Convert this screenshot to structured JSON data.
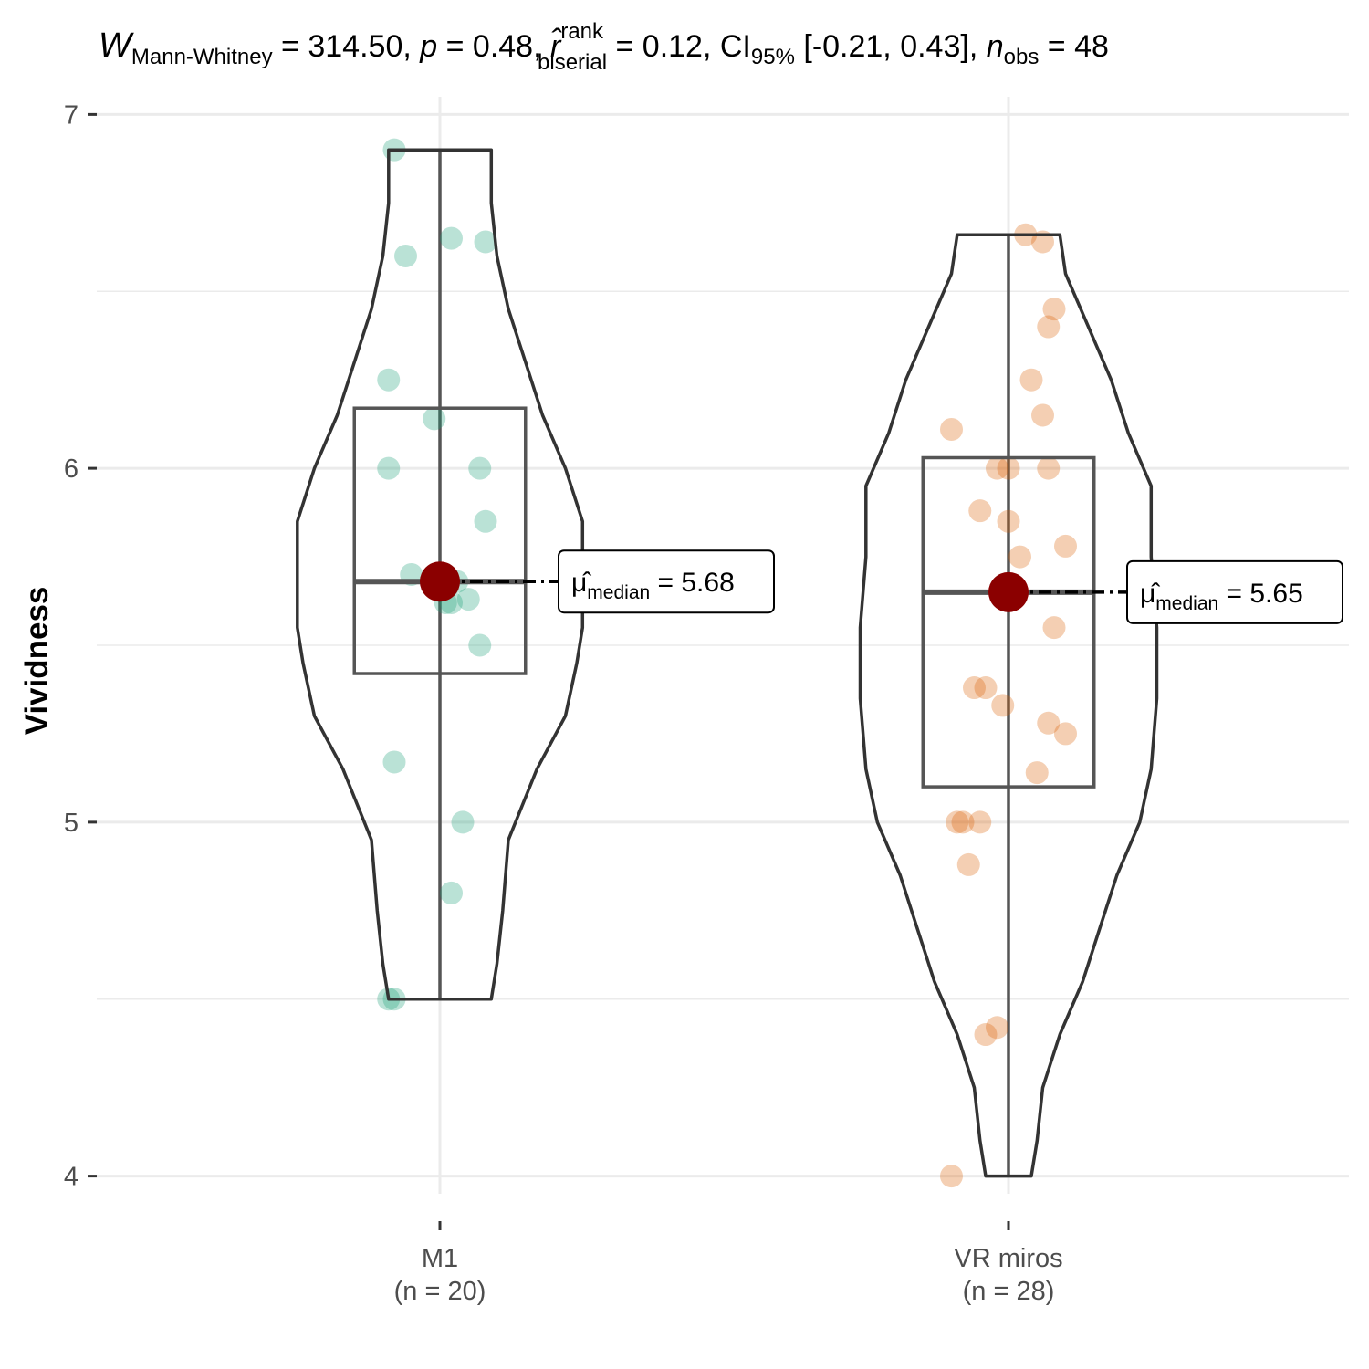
{
  "chart_data": {
    "type": "violin",
    "subtitle_parts": {
      "stat_symbol": "W",
      "stat_sub": "Mann-Whitney",
      "stat_value": " = 314.50, ",
      "p_symbol": "p",
      "p_value": " = 0.48, ",
      "r_symbol": "r̂",
      "r_sup": "rank",
      "r_sub": "biserial",
      "r_value": " = 0.12, CI",
      "ci_sub": "95%",
      "ci_value": " [-0.21, 0.43], ",
      "n_symbol": "n",
      "n_sub": "obs",
      "n_value": " = 48"
    },
    "ylabel": "Vividness",
    "ylim": [
      3.95,
      7.05
    ],
    "yticks": [
      "4",
      "5",
      "6",
      "7"
    ],
    "grid": true,
    "groups": [
      {
        "name": "M1",
        "n_label": "(n = 20)",
        "color": "#1b9e77",
        "box": {
          "q1": 5.42,
          "median": 5.68,
          "q3": 6.17,
          "whisker_low": 4.5,
          "whisker_high": 6.9
        },
        "median_label_symbol": "μ̂",
        "median_label_sub": "median",
        "median_label_value": " = 5.68",
        "points": [
          [
            -0.08,
            6.9
          ],
          [
            -0.06,
            6.6
          ],
          [
            0.02,
            6.65
          ],
          [
            0.08,
            6.64
          ],
          [
            -0.09,
            6.25
          ],
          [
            -0.01,
            6.14
          ],
          [
            -0.09,
            6.0
          ],
          [
            0.07,
            6.0
          ],
          [
            0.08,
            5.85
          ],
          [
            -0.05,
            5.7
          ],
          [
            0.03,
            5.68
          ],
          [
            0.01,
            5.62
          ],
          [
            0.02,
            5.62
          ],
          [
            0.05,
            5.63
          ],
          [
            0.07,
            5.5
          ],
          [
            -0.08,
            5.17
          ],
          [
            0.04,
            5.0
          ],
          [
            0.02,
            4.8
          ],
          [
            -0.09,
            4.5
          ],
          [
            -0.08,
            4.5
          ]
        ],
        "violin": [
          [
            4.5,
            0.09
          ],
          [
            4.6,
            0.1
          ],
          [
            4.75,
            0.11
          ],
          [
            4.95,
            0.12
          ],
          [
            5.15,
            0.17
          ],
          [
            5.3,
            0.22
          ],
          [
            5.45,
            0.24
          ],
          [
            5.55,
            0.25
          ],
          [
            5.7,
            0.25
          ],
          [
            5.85,
            0.25
          ],
          [
            6.0,
            0.22
          ],
          [
            6.15,
            0.18
          ],
          [
            6.3,
            0.15
          ],
          [
            6.45,
            0.12
          ],
          [
            6.6,
            0.1
          ],
          [
            6.75,
            0.09
          ],
          [
            6.9,
            0.09
          ]
        ]
      },
      {
        "name": "VR miros",
        "n_label": "(n = 28)",
        "color": "#d95f02",
        "box": {
          "q1": 5.1,
          "median": 5.65,
          "q3": 6.03,
          "whisker_low": 4.0,
          "whisker_high": 6.66
        },
        "median_label_symbol": "μ̂",
        "median_label_sub": "median",
        "median_label_value": " = 5.65",
        "points": [
          [
            0.03,
            6.66
          ],
          [
            0.06,
            6.64
          ],
          [
            0.08,
            6.45
          ],
          [
            0.07,
            6.4
          ],
          [
            0.04,
            6.25
          ],
          [
            0.06,
            6.15
          ],
          [
            -0.1,
            6.11
          ],
          [
            -0.02,
            6.0
          ],
          [
            0.0,
            6.0
          ],
          [
            0.07,
            6.0
          ],
          [
            -0.05,
            5.88
          ],
          [
            0.0,
            5.85
          ],
          [
            0.1,
            5.78
          ],
          [
            0.02,
            5.75
          ],
          [
            0.08,
            5.55
          ],
          [
            -0.06,
            5.38
          ],
          [
            -0.04,
            5.38
          ],
          [
            -0.01,
            5.33
          ],
          [
            0.07,
            5.28
          ],
          [
            0.1,
            5.25
          ],
          [
            0.05,
            5.14
          ],
          [
            -0.09,
            5.0
          ],
          [
            -0.08,
            5.0
          ],
          [
            -0.05,
            5.0
          ],
          [
            -0.07,
            4.88
          ],
          [
            -0.04,
            4.4
          ],
          [
            -0.02,
            4.42
          ],
          [
            -0.1,
            4.0
          ]
        ],
        "violin": [
          [
            4.0,
            0.04
          ],
          [
            4.1,
            0.05
          ],
          [
            4.25,
            0.06
          ],
          [
            4.4,
            0.09
          ],
          [
            4.55,
            0.13
          ],
          [
            4.7,
            0.16
          ],
          [
            4.85,
            0.19
          ],
          [
            5.0,
            0.23
          ],
          [
            5.15,
            0.25
          ],
          [
            5.35,
            0.26
          ],
          [
            5.55,
            0.26
          ],
          [
            5.75,
            0.25
          ],
          [
            5.95,
            0.25
          ],
          [
            6.1,
            0.21
          ],
          [
            6.25,
            0.18
          ],
          [
            6.4,
            0.14
          ],
          [
            6.55,
            0.1
          ],
          [
            6.66,
            0.09
          ]
        ]
      }
    ]
  }
}
